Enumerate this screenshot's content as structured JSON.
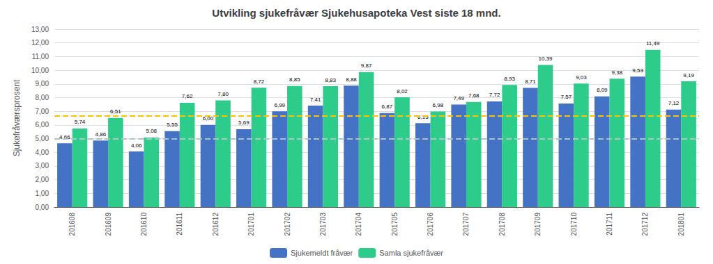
{
  "chart_data": {
    "type": "bar",
    "title": "Utvikling sjukefråvær Sjukehusapoteka Vest siste 18 mnd.",
    "ylabel": "Sjukefråværsprosent",
    "categories": [
      "201608",
      "201609",
      "201610",
      "201611",
      "201612",
      "201701",
      "201702",
      "201703",
      "201704",
      "201705",
      "201706",
      "201707",
      "201708",
      "201709",
      "201710",
      "201711",
      "201712",
      "201801"
    ],
    "series": [
      {
        "name": "Sjukemeldt fråvær",
        "color": "#4472C4",
        "values": [
          4.66,
          4.86,
          4.06,
          5.55,
          6.0,
          5.69,
          6.99,
          7.41,
          8.88,
          6.87,
          6.13,
          7.49,
          7.72,
          8.71,
          7.57,
          8.09,
          9.53,
          7.12
        ],
        "value_labels": [
          "4,66",
          "4,86",
          "4,06",
          "5,55",
          "6,00",
          "5,69",
          "6,99",
          "7,41",
          "8,88",
          "6,87",
          "6,13",
          "7,49",
          "7,72",
          "8,71",
          "7,57",
          "8,09",
          "9,53",
          "7,12"
        ]
      },
      {
        "name": "Samla sjukefråvær",
        "color": "#2ECC8A",
        "values": [
          5.74,
          6.51,
          5.08,
          7.62,
          7.8,
          8.72,
          8.85,
          8.83,
          9.87,
          8.02,
          6.98,
          7.68,
          8.93,
          10.39,
          9.03,
          9.38,
          11.49,
          9.19
        ],
        "value_labels": [
          "5,74",
          "6,51",
          "5,08",
          "7,62",
          "7,80",
          "8,72",
          "8,85",
          "8,83",
          "9,87",
          "8,02",
          "6,98",
          "7,68",
          "8,93",
          "10,39",
          "9,03",
          "9,38",
          "11,49",
          "9,19"
        ]
      }
    ],
    "hlines": [
      {
        "value": 6.68,
        "color": "#FFC000",
        "line_style": "dashed"
      },
      {
        "value": 4.97,
        "color": "#B0C4C4",
        "line_style": "dashed"
      }
    ],
    "ylim": [
      0,
      13
    ],
    "yticks": [
      {
        "value": 0,
        "label": "0,00"
      },
      {
        "value": 1,
        "label": "1,00"
      },
      {
        "value": 2,
        "label": "2,00"
      },
      {
        "value": 3,
        "label": "3,00"
      },
      {
        "value": 4,
        "label": "4,00"
      },
      {
        "value": 5,
        "label": "5,00"
      },
      {
        "value": 6,
        "label": "6,00"
      },
      {
        "value": 7,
        "label": "7,00"
      },
      {
        "value": 8,
        "label": "8,00"
      },
      {
        "value": 9,
        "label": "9,00"
      },
      {
        "value": 10,
        "label": "10,00"
      },
      {
        "value": 11,
        "label": "11,00"
      },
      {
        "value": 12,
        "label": "12,00"
      },
      {
        "value": 13,
        "label": "13,00"
      }
    ],
    "grid": true,
    "legend": "bottom",
    "data_labels": true
  }
}
